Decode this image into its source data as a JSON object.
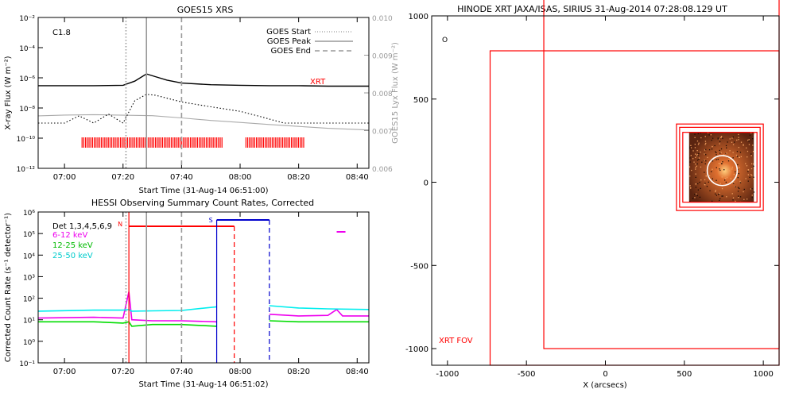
{
  "chart_data": [
    {
      "type": "line",
      "title": "GOES15 XRS",
      "xlabel": "Start Time (31-Aug-14 06:51:00)",
      "ylabel": "X-ray Flux (W m⁻²)",
      "y2label": "GOES15 Lyx Flux (W m⁻²)",
      "x_range": [
        "06:51",
        "08:44"
      ],
      "x_ticks": [
        "07:00",
        "07:20",
        "07:40",
        "08:00",
        "08:20",
        "08:40"
      ],
      "y_scale": "log",
      "ylim": [
        1e-12,
        0.01
      ],
      "y_ticks": [
        "10⁻¹²",
        "10⁻¹⁰",
        "10⁻⁸",
        "10⁻⁶",
        "10⁻⁴",
        "10⁻²"
      ],
      "y2lim": [
        0.006,
        0.01
      ],
      "y2_ticks": [
        "0.006",
        "0.007",
        "0.008",
        "0.009",
        "0.010"
      ],
      "flare_class": "C1.8",
      "legend": [
        {
          "label": "GOES Start",
          "style": "dotted"
        },
        {
          "label": "GOES Peak",
          "style": "solid"
        },
        {
          "label": "GOES End",
          "style": "dashed"
        }
      ],
      "legend_position": "top-right",
      "markers": {
        "start": "07:21",
        "peak": "07:28",
        "end": "07:40"
      },
      "xrt_label": "XRT",
      "series": [
        {
          "name": "",
          "color": "#000000",
          "style": "solid",
          "x": [
            "06:51",
            "07:00",
            "07:10",
            "07:20",
            "07:24",
            "07:28",
            "07:31",
            "07:35",
            "07:40",
            "07:50",
            "08:00",
            "08:10",
            "08:20",
            "08:30",
            "08:44"
          ],
          "values": [
            3e-07,
            3e-07,
            3e-07,
            3.2e-07,
            6e-07,
            1.8e-06,
            1.2e-06,
            7e-07,
            4.5e-07,
            3.5e-07,
            3.2e-07,
            3e-07,
            3e-07,
            2.8e-07,
            2.8e-07
          ]
        },
        {
          "name": "",
          "color": "#aaaaaa",
          "style": "solid",
          "x": [
            "06:51",
            "07:00",
            "07:10",
            "07:20",
            "07:30",
            "07:40",
            "07:50",
            "08:00",
            "08:10",
            "08:20",
            "08:30",
            "08:44"
          ],
          "values": [
            3e-09,
            3.4e-09,
            3.6e-09,
            3.3e-09,
            3.1e-09,
            2.2e-09,
            1.5e-09,
            1.1e-09,
            8e-10,
            6e-10,
            4.5e-10,
            3.5e-10
          ]
        },
        {
          "name": "",
          "color": "#000000",
          "style": "dotted",
          "x": [
            "06:51",
            "07:00",
            "07:05",
            "07:10",
            "07:15",
            "07:20",
            "07:24",
            "07:28",
            "07:31",
            "07:36",
            "07:40",
            "07:50",
            "08:00",
            "08:06",
            "08:15",
            "08:30",
            "08:44"
          ],
          "values": [
            1e-09,
            1e-09,
            3e-09,
            1e-09,
            4e-09,
            1e-09,
            3e-08,
            8e-08,
            7e-08,
            4e-08,
            2.5e-08,
            1.2e-08,
            6e-09,
            3e-09,
            1e-09,
            1e-09,
            1e-09
          ]
        }
      ],
      "xrt_intervals": [
        [
          "07:06",
          "07:54"
        ],
        [
          "08:02",
          "08:22"
        ]
      ]
    },
    {
      "type": "line",
      "title": "HESSI Observing Summary Count Rates, Corrected",
      "xlabel": "Start Time (31-Aug-14 06:51:02)",
      "ylabel": "Corrected Count Rate (s⁻¹ detector⁻¹)",
      "x_range": [
        "06:51",
        "08:44"
      ],
      "x_ticks": [
        "07:00",
        "07:20",
        "07:40",
        "08:00",
        "08:20",
        "08:40"
      ],
      "y_scale": "log",
      "ylim": [
        0.1,
        1000000.0
      ],
      "y_ticks": [
        "10⁻¹",
        "10⁰",
        "10¹",
        "10²",
        "10³",
        "10⁴",
        "10⁵",
        "10⁶"
      ],
      "detectors": "Det 1,3,4,5,6,9",
      "legend_position": "top-left",
      "flag_labels": {
        "night": "N",
        "saa": "S"
      },
      "series": [
        {
          "name": "6-12 keV",
          "color": "#ee00ee",
          "x": [
            "06:51",
            "07:10",
            "07:20",
            "07:22",
            "07:23",
            "07:30",
            "07:40",
            "07:52",
            "08:05",
            "08:10",
            "08:20",
            "08:30",
            "08:33",
            "08:35",
            "08:44"
          ],
          "values": [
            12,
            13,
            12,
            200,
            10,
            9,
            9,
            8,
            null,
            18,
            15,
            16,
            30,
            15,
            15
          ]
        },
        {
          "name": "12-25 keV",
          "color": "#00dd00",
          "x": [
            "06:51",
            "07:10",
            "07:20",
            "07:22",
            "07:23",
            "07:30",
            "07:40",
            "07:52",
            "08:05",
            "08:10",
            "08:20",
            "08:30",
            "08:44"
          ],
          "values": [
            8,
            8,
            7,
            8,
            5,
            6,
            6,
            5,
            null,
            9,
            8,
            8,
            8
          ]
        },
        {
          "name": "25-50 keV",
          "color": "#00eeee",
          "x": [
            "06:51",
            "07:10",
            "07:20",
            "07:22",
            "07:23",
            "07:30",
            "07:40",
            "07:52",
            "08:05",
            "08:10",
            "08:20",
            "08:30",
            "08:44"
          ],
          "values": [
            25,
            28,
            28,
            30,
            25,
            26,
            27,
            40,
            null,
            45,
            35,
            32,
            30
          ]
        }
      ],
      "flags": {
        "night": [
          "07:22",
          "07:58"
        ],
        "saa": [
          "07:52",
          "08:10"
        ]
      }
    },
    {
      "type": "scatter",
      "title": "HINODE XRT JAXA/ISAS, SIRIUS 31-Aug-2014 07:28:08.129 UT",
      "xlabel": "X (arcsecs)",
      "ylabel": "",
      "xlim": [
        -1100,
        1100
      ],
      "ylim": [
        -1100,
        1000
      ],
      "x_ticks": [
        -1000,
        -500,
        0,
        500,
        1000
      ],
      "y_ticks": [
        -1000,
        -500,
        0,
        500,
        1000
      ],
      "fov_label": "XRT FOV",
      "corner_marker": "O",
      "fov_boxes": [
        {
          "x0": -730,
          "x1": 1100,
          "y0": -1100,
          "y1": 790
        },
        {
          "x0": -390,
          "x1": 1100,
          "y0": -1000,
          "y1": 1100
        },
        {
          "x0": 450,
          "x1": 1000,
          "y0": -170,
          "y1": 350
        },
        {
          "x0": 470,
          "x1": 980,
          "y0": -150,
          "y1": 330
        },
        {
          "x0": 490,
          "x1": 960,
          "y0": -120,
          "y1": 300
        }
      ],
      "image_box": {
        "x0": 530,
        "x1": 940,
        "y0": -120,
        "y1": 300
      },
      "circle": {
        "x": 740,
        "y": 70,
        "r": 95
      },
      "colors": {
        "fov": "#ff0000",
        "image": "#c85a28",
        "circle": "#ffffff"
      }
    }
  ]
}
